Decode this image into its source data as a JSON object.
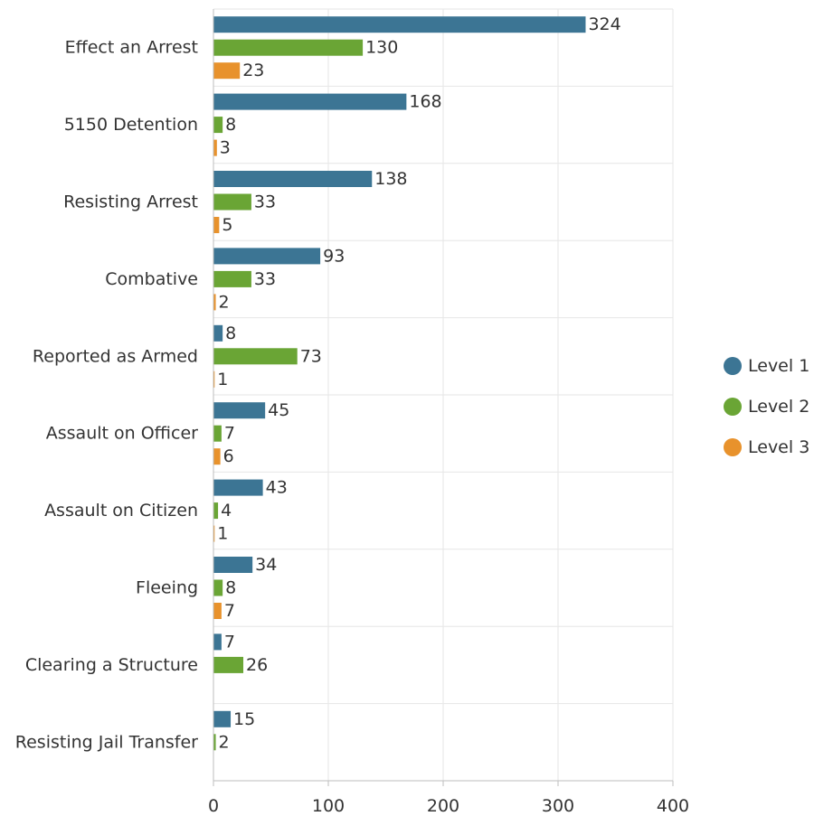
{
  "chart_data": {
    "type": "bar",
    "orientation": "horizontal",
    "categories": [
      "Effect an Arrest",
      "5150 Detention",
      "Resisting Arrest",
      "Combative",
      "Reported as Armed",
      "Assault on Officer",
      "Assault on Citizen",
      "Fleeing",
      "Clearing a Structure",
      "Resisting Jail Transfer"
    ],
    "series": [
      {
        "name": "Level 1",
        "color": "#3c7594",
        "values": [
          324,
          168,
          138,
          93,
          8,
          45,
          43,
          34,
          7,
          15
        ]
      },
      {
        "name": "Level 2",
        "color": "#6aa535",
        "values": [
          130,
          8,
          33,
          33,
          73,
          7,
          4,
          8,
          26,
          2
        ]
      },
      {
        "name": "Level 3",
        "color": "#e8922c",
        "values": [
          23,
          3,
          5,
          2,
          1,
          6,
          1,
          7,
          null,
          null
        ]
      }
    ],
    "xlim": [
      0,
      400
    ],
    "xticks": [
      0,
      100,
      200,
      300,
      400
    ],
    "grid": true,
    "legend_position": "right"
  }
}
